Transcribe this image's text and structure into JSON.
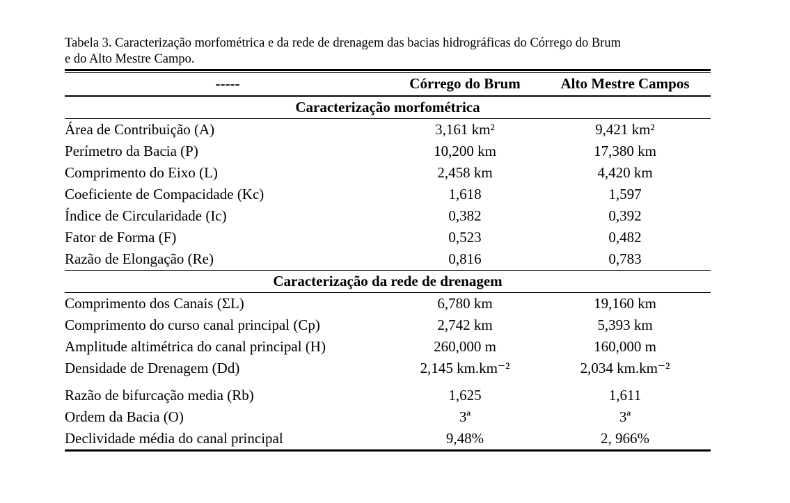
{
  "page": {
    "background": "#ffffff",
    "text_color": "#000000"
  },
  "caption": {
    "line1": "Tabela 3. Caracterização morfométrica e da rede de drenagem das bacias hidrográficas do Córrego do Brum",
    "line2": "e do Alto Mestre Campo."
  },
  "table": {
    "columns": [
      "-----",
      "Córrego do Brum",
      "Alto Mestre Campos"
    ],
    "sections": [
      {
        "title": "Caracterização morfométrica",
        "rows": [
          {
            "label": "Área de Contribuição (A)",
            "brum": "3,161 km²",
            "campos": "9,421 km²"
          },
          {
            "label": "Perímetro da Bacia (P)",
            "brum": "10,200 km",
            "campos": "17,380 km"
          },
          {
            "label": "Comprimento do Eixo (L)",
            "brum": "2,458 km",
            "campos": "4,420 km"
          },
          {
            "label": "Coeficiente de Compacidade (Kc)",
            "brum": "1,618",
            "campos": "1,597"
          },
          {
            "label": "Índice de Circularidade (Ic)",
            "brum": "0,382",
            "campos": "0,392"
          },
          {
            "label": "Fator de Forma (F)",
            "brum": "0,523",
            "campos": "0,482"
          },
          {
            "label": "Razão de Elongação (Re)",
            "brum": "0,816",
            "campos": "0,783"
          }
        ]
      },
      {
        "title": "Caracterização da rede de drenagem",
        "rows": [
          {
            "label": "Comprimento dos Canais (ΣL)",
            "brum": "6,780 km",
            "campos": "19,160 km"
          },
          {
            "label": "Comprimento do curso canal principal (Cp)",
            "brum": "2,742 km",
            "campos": "5,393 km"
          },
          {
            "label": "Amplitude altimétrica do canal principal (H)",
            "brum": "260,000 m",
            "campos": "160,000 m"
          },
          {
            "label": "Densidade de Drenagem (Dd)",
            "brum": "2,145 km.km⁻²",
            "campos": "2,034 km.km⁻²"
          },
          {
            "label": "Razão de bifurcação media (Rb)",
            "brum": "1,625",
            "campos": "1,611"
          },
          {
            "label": "Ordem da Bacia (O)",
            "brum": "3ª",
            "campos": "3ª"
          },
          {
            "label": "Declividade média do canal principal",
            "brum": "9,48%",
            "campos": "2, 966%"
          }
        ]
      }
    ]
  }
}
